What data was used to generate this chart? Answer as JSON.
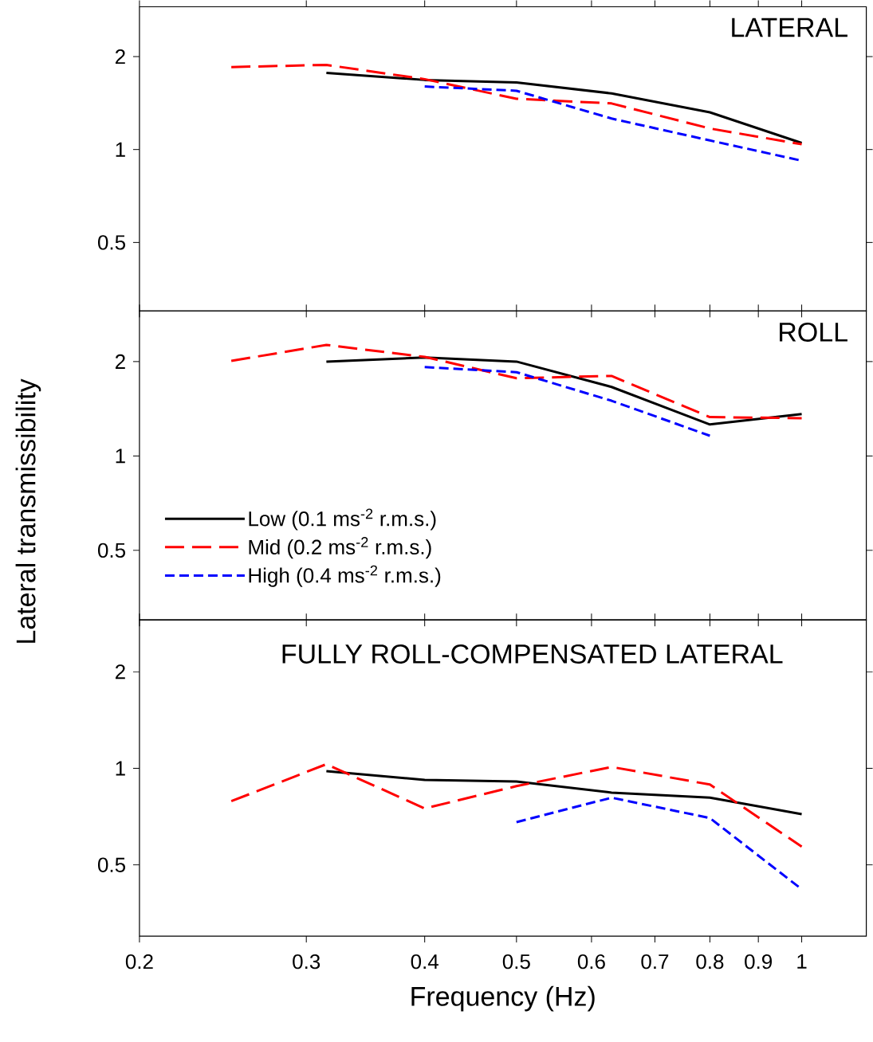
{
  "chart_data": [
    {
      "type": "line",
      "title": "LATERAL",
      "log": "xy",
      "xlim": [
        0.2,
        1.17
      ],
      "ylim": [
        0.3,
        2.9
      ],
      "xticks": [
        0.2,
        0.3,
        0.4,
        0.5,
        0.6,
        0.7,
        0.8,
        0.9,
        1
      ],
      "yticks": [
        0.5,
        1,
        2
      ],
      "tick_labels": "y",
      "series": [
        {
          "color": "#000000",
          "line_style": "solid",
          "x": [
            0.315,
            0.4,
            0.5,
            0.63,
            0.8,
            1.0
          ],
          "values": [
            1.77,
            1.68,
            1.65,
            1.52,
            1.32,
            1.05
          ]
        },
        {
          "color": "#ff0000",
          "line_style": "dashed",
          "x": [
            0.25,
            0.315,
            0.4,
            0.5,
            0.63,
            0.8,
            1.0
          ],
          "values": [
            1.85,
            1.88,
            1.69,
            1.46,
            1.41,
            1.17,
            1.04
          ]
        },
        {
          "color": "#0000ff",
          "line_style": "dashed",
          "x": [
            0.4,
            0.5,
            0.63,
            0.8,
            1.0
          ],
          "values": [
            1.6,
            1.55,
            1.26,
            1.07,
            0.92
          ]
        }
      ]
    },
    {
      "type": "line",
      "title": "ROLL",
      "ylabel": "Lateral transmissibility",
      "log": "xy",
      "xlim": [
        0.2,
        1.17
      ],
      "ylim": [
        0.3,
        2.9
      ],
      "xticks": [
        0.2,
        0.3,
        0.4,
        0.5,
        0.6,
        0.7,
        0.8,
        0.9,
        1
      ],
      "yticks": [
        0.5,
        1,
        2
      ],
      "tick_labels": "y",
      "legend": "bottom left",
      "series": [
        {
          "name": "Low (0.1 ms$^{-2}$ r.m.s.)",
          "color": "#000000",
          "line_style": "solid",
          "x": [
            0.315,
            0.4,
            0.5,
            0.63,
            0.8,
            1.0
          ],
          "values": [
            2.0,
            2.06,
            2.0,
            1.66,
            1.26,
            1.36
          ]
        },
        {
          "name": "Mid (0.2 ms$^{-2}$ r.m.s.)",
          "color": "#ff0000",
          "line_style": "dashed",
          "x": [
            0.25,
            0.315,
            0.4,
            0.5,
            0.63,
            0.8,
            1.0
          ],
          "values": [
            2.01,
            2.26,
            2.07,
            1.77,
            1.8,
            1.33,
            1.32
          ]
        },
        {
          "name": "High (0.4 ms$^{-2}$ r.m.s.)",
          "color": "#0000ff",
          "line_style": "dashed",
          "x": [
            0.4,
            0.5,
            0.63,
            0.8
          ],
          "values": [
            1.92,
            1.85,
            1.5,
            1.16
          ]
        }
      ]
    },
    {
      "type": "line",
      "title": "FULLY ROLL-COMPENSATED LATERAL",
      "xlabel": "Frequency (Hz)",
      "log": "xy",
      "xlim": [
        0.2,
        1.17
      ],
      "ylim": [
        0.3,
        2.9
      ],
      "xticks": [
        0.2,
        0.3,
        0.4,
        0.5,
        0.6,
        0.7,
        0.8,
        0.9,
        1
      ],
      "yticks": [
        0.5,
        1,
        2
      ],
      "series": [
        {
          "color": "#000000",
          "line_style": "solid",
          "x": [
            0.315,
            0.4,
            0.5,
            0.63,
            0.8,
            1.0
          ],
          "values": [
            0.98,
            0.92,
            0.91,
            0.84,
            0.81,
            0.72
          ]
        },
        {
          "color": "#ff0000",
          "line_style": "dashed",
          "x": [
            0.25,
            0.315,
            0.4,
            0.5,
            0.63,
            0.8,
            1.0
          ],
          "values": [
            0.79,
            1.03,
            0.75,
            0.88,
            1.01,
            0.89,
            0.57
          ]
        },
        {
          "color": "#0000ff",
          "line_style": "dashed",
          "x": [
            0.5,
            0.63,
            0.8,
            1.0
          ],
          "values": [
            0.68,
            0.81,
            0.7,
            0.42
          ]
        }
      ]
    }
  ]
}
